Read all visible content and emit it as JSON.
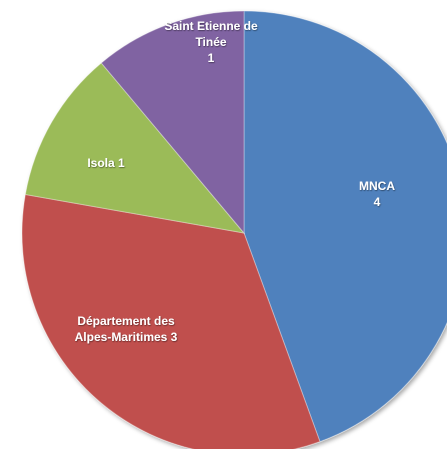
{
  "chart_data": {
    "type": "pie",
    "title": "",
    "slices": [
      {
        "name": "MNCA",
        "value": 4,
        "color": "#4f81bd",
        "label_lines": [
          "MNCA",
          "4"
        ]
      },
      {
        "name": "Département des Alpes-Maritimes",
        "value": 3,
        "color": "#c0504d",
        "label_lines": [
          "Département des",
          "Alpes-Maritimes 3"
        ]
      },
      {
        "name": "Isola",
        "value": 1,
        "color": "#9bbb59",
        "label_lines": [
          "Isola 1"
        ]
      },
      {
        "name": "Saint Etienne de Tinée",
        "value": 1,
        "color": "#8064a2",
        "label_lines": [
          "Saint Etienne de",
          "Tinée",
          "1"
        ]
      }
    ],
    "start_angle_deg": 0,
    "direction": "clockwise",
    "legend": "none"
  }
}
